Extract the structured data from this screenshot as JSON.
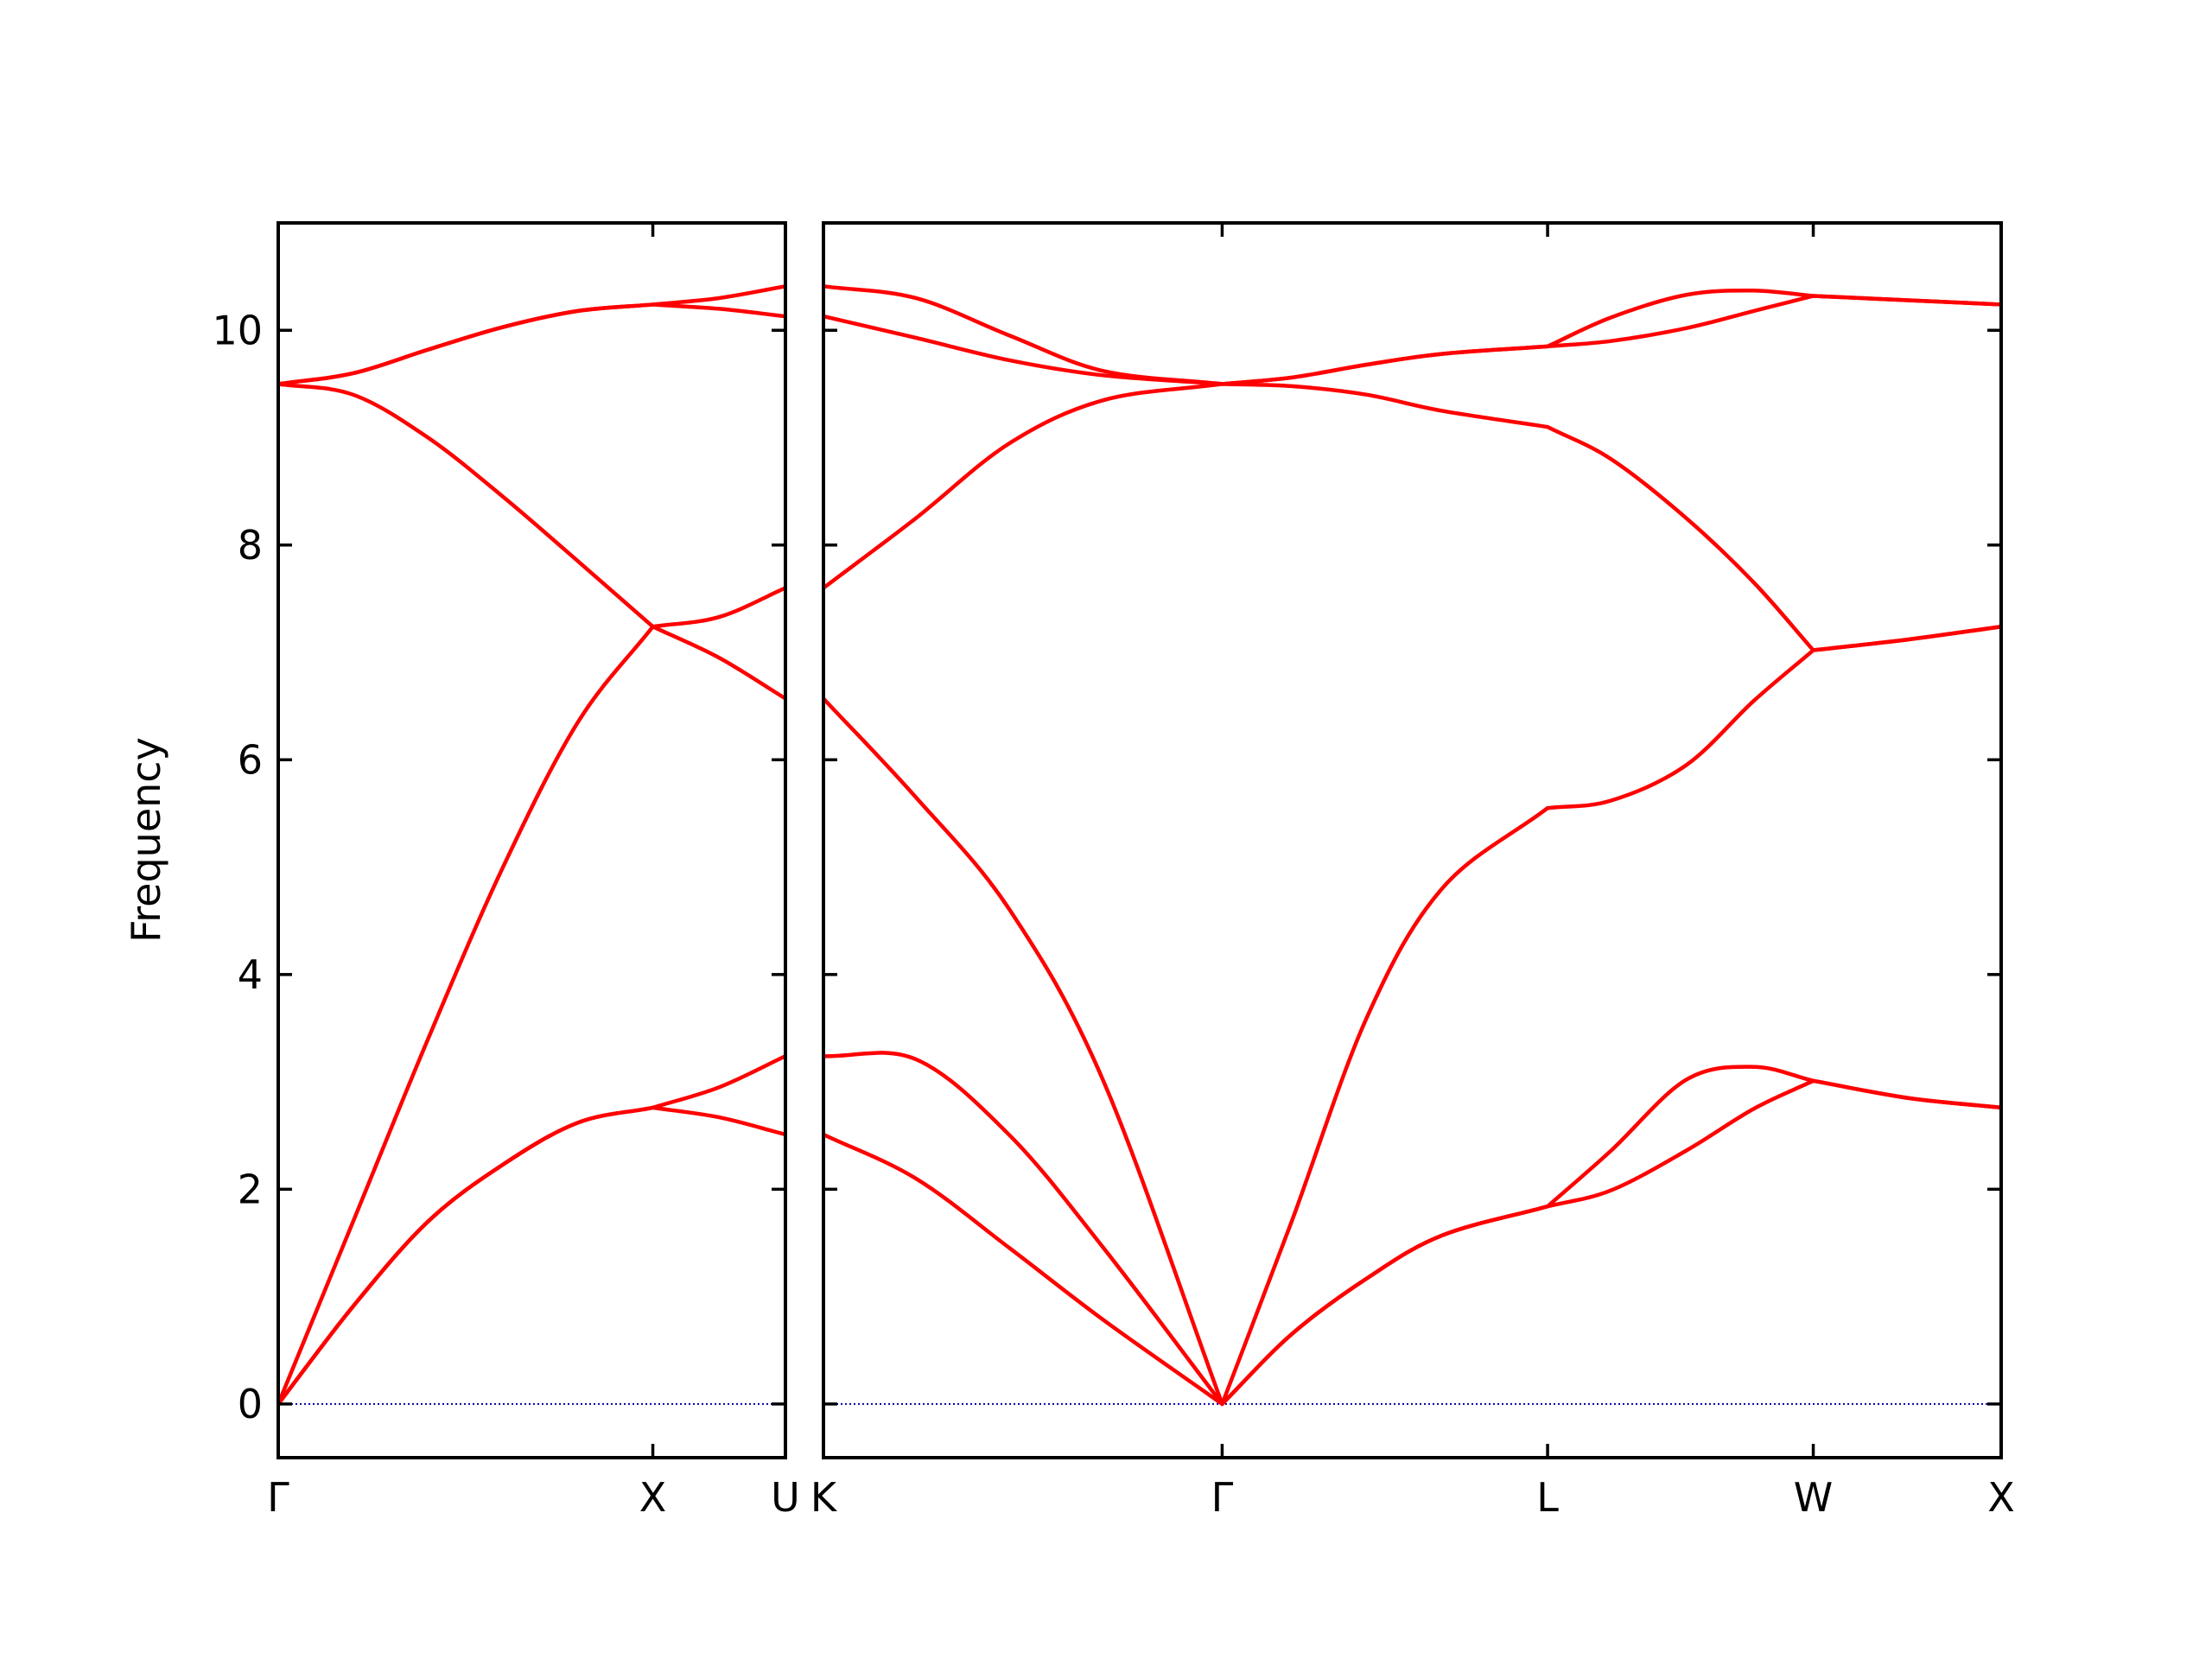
{
  "chart_data": [
    {
      "type": "line",
      "ylabel": "Frequency",
      "x": [
        0,
        0.2,
        0.4,
        0.6,
        0.8,
        1,
        1.177,
        1.354
      ],
      "xlim": [
        0,
        1.354
      ],
      "xticks": [
        {
          "value": 0,
          "label": "Γ"
        },
        {
          "value": 1,
          "label": "X"
        },
        {
          "value": 1.354,
          "label": "U"
        }
      ],
      "ylim": [
        -0.5,
        11
      ],
      "yticks": [
        0,
        2,
        4,
        6,
        8,
        10
      ],
      "ytick_labels": true,
      "hlines": [
        {
          "value": 0,
          "color": "#0000aa",
          "style": "dotted"
        }
      ],
      "series": [
        {
          "color": "#ff0000",
          "values": [
            0,
            0.91,
            1.7,
            2.23,
            2.62,
            2.76,
            2.67,
            2.51
          ]
        },
        {
          "color": "#ff0000",
          "values": [
            0,
            0.91,
            1.7,
            2.23,
            2.62,
            2.76,
            2.95,
            3.24
          ]
        },
        {
          "color": "#ff0000",
          "values": [
            0,
            1.7,
            3.4,
            5.0,
            6.35,
            7.24,
            6.95,
            6.57
          ]
        },
        {
          "color": "#ff0000",
          "values": [
            9.5,
            9.4,
            9.0,
            8.45,
            7.85,
            7.24,
            7.33,
            7.6
          ]
        },
        {
          "color": "#ff0000",
          "values": [
            9.5,
            9.6,
            9.82,
            10.03,
            10.18,
            10.24,
            10.2,
            10.13
          ]
        },
        {
          "color": "#ff0000",
          "values": [
            9.5,
            9.6,
            9.82,
            10.03,
            10.18,
            10.24,
            10.3,
            10.41
          ]
        }
      ]
    },
    {
      "type": "line",
      "x": [
        1.354,
        1.6,
        1.85,
        2.1,
        2.415,
        2.6,
        2.8,
        3.0,
        3.281,
        3.45,
        3.65,
        3.83,
        3.988,
        4.24,
        4.488
      ],
      "xlim": [
        1.354,
        4.488
      ],
      "xticks": [
        {
          "value": 1.354,
          "label": "K"
        },
        {
          "value": 2.415,
          "label": "Γ"
        },
        {
          "value": 3.281,
          "label": "L"
        },
        {
          "value": 3.988,
          "label": "W"
        },
        {
          "value": 4.488,
          "label": "X"
        }
      ],
      "ylim": [
        -0.5,
        11
      ],
      "yticks": [
        0,
        2,
        4,
        6,
        8,
        10
      ],
      "ytick_labels": false,
      "hlines": [
        {
          "value": 0,
          "color": "#0000aa",
          "style": "dotted"
        }
      ],
      "series": [
        {
          "color": "#ff0000",
          "values": [
            2.51,
            2.1,
            1.45,
            0.78,
            0,
            0.65,
            1.17,
            1.57,
            1.84,
            1.99,
            2.36,
            2.75,
            3.01,
            2.85,
            2.76
          ]
        },
        {
          "color": "#ff0000",
          "values": [
            3.24,
            3.21,
            2.5,
            1.45,
            0,
            0.65,
            1.17,
            1.57,
            1.84,
            2.36,
            3.02,
            3.14,
            3.01,
            2.85,
            2.76
          ]
        },
        {
          "color": "#ff0000",
          "values": [
            6.57,
            5.65,
            4.6,
            3.0,
            0,
            1.7,
            3.6,
            4.8,
            5.55,
            5.62,
            5.95,
            6.55,
            7.02,
            7.12,
            7.24
          ]
        },
        {
          "color": "#ff0000",
          "values": [
            7.6,
            8.25,
            8.95,
            9.35,
            9.5,
            9.48,
            9.4,
            9.25,
            9.1,
            8.8,
            8.25,
            7.65,
            7.02,
            7.12,
            7.24
          ]
        },
        {
          "color": "#ff0000",
          "values": [
            10.13,
            9.93,
            9.72,
            9.58,
            9.5,
            9.56,
            9.68,
            9.78,
            9.85,
            9.9,
            10.02,
            10.18,
            10.32,
            10.28,
            10.24
          ]
        },
        {
          "color": "#ff0000",
          "values": [
            10.41,
            10.3,
            9.95,
            9.62,
            9.5,
            9.56,
            9.68,
            9.78,
            9.85,
            10.12,
            10.33,
            10.37,
            10.32,
            10.28,
            10.24
          ]
        }
      ]
    }
  ]
}
